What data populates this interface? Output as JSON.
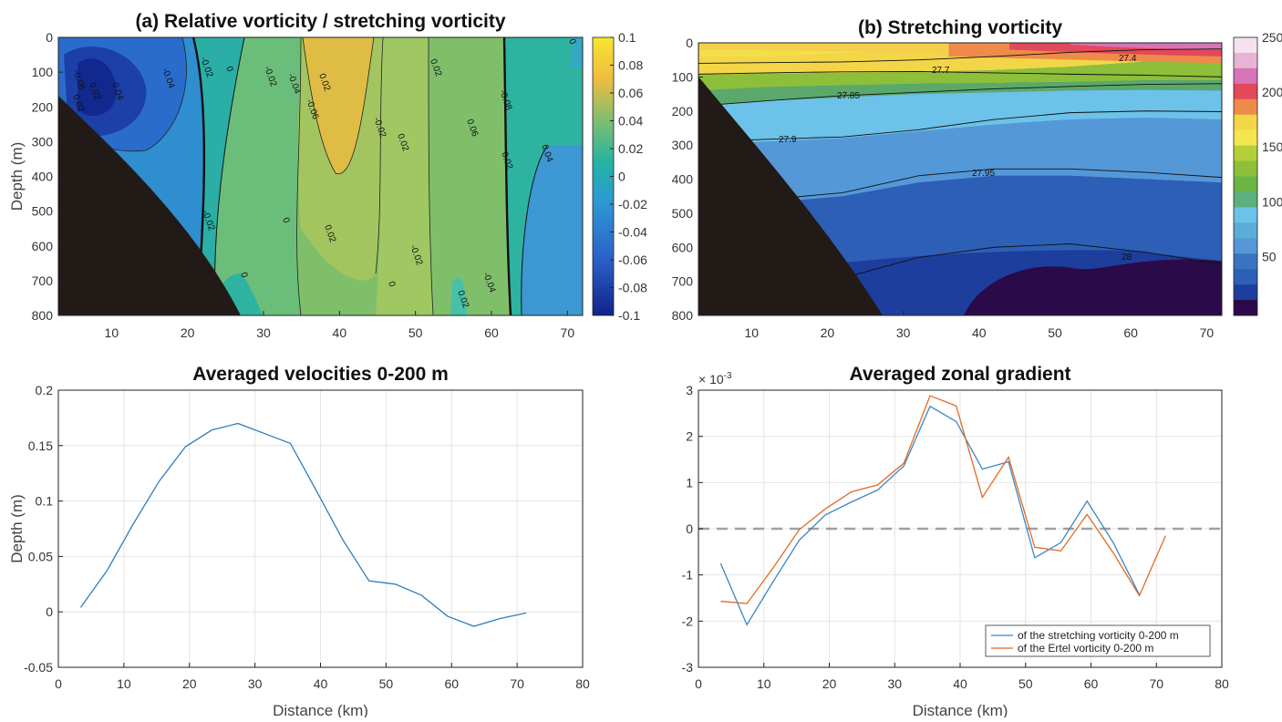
{
  "chart_data": [
    {
      "panel": "a",
      "type": "heatmap",
      "title": "(a) Relative vorticity / stretching vorticity",
      "xlabel": "",
      "ylabel": "Depth (m)",
      "xlim": [
        3,
        72
      ],
      "ylim": [
        800,
        0
      ],
      "x_ticks": [
        10,
        20,
        30,
        40,
        50,
        60,
        70
      ],
      "y_ticks": [
        0,
        100,
        200,
        300,
        400,
        500,
        600,
        700,
        800
      ],
      "colorbar": {
        "range": [
          -0.1,
          0.1
        ],
        "ticks": [
          "0.1",
          "0.08",
          "0.06",
          "0.04",
          "0.02",
          "0",
          "-0.02",
          "-0.04",
          "-0.06",
          "-0.08",
          "-0.1"
        ]
      },
      "contour_labels": [
        "-0.06",
        "-0.04",
        "-0.02",
        "0",
        "-0.02",
        "-0.04",
        "-0.06",
        "0.02",
        "-0.02",
        "0.02",
        "0.06",
        "0.04",
        "0.02",
        "-0.02",
        "0",
        "0.02",
        "-0.02",
        "0",
        "-0.04",
        "0.02",
        "0.02",
        "0.02",
        "0.04",
        "0.02",
        "-0.08",
        "0",
        "0"
      ],
      "colors": {
        "low": "#1b2a8c",
        "mid": "#2aa8b0",
        "high": "#f5e23a",
        "bathymetry": "#221a17"
      }
    },
    {
      "panel": "b",
      "type": "heatmap",
      "title": "(b) Stretching vorticity",
      "xlabel": "",
      "ylabel": "",
      "xlim": [
        3,
        72
      ],
      "ylim": [
        800,
        0
      ],
      "x_ticks": [
        10,
        20,
        30,
        40,
        50,
        60,
        70
      ],
      "y_ticks": [
        0,
        100,
        200,
        300,
        400,
        500,
        600,
        700,
        800
      ],
      "colorbar": {
        "range": [
          0,
          250
        ],
        "ticks": [
          "250",
          "200",
          "150",
          "100",
          "50"
        ]
      },
      "isopycnals": [
        {
          "label": "27.4",
          "depths": [
            60,
            58,
            56,
            50,
            40,
            28,
            20,
            18
          ]
        },
        {
          "label": "27.7",
          "depths": [
            92,
            88,
            85,
            84,
            88,
            92,
            95,
            100
          ]
        },
        {
          "label": "27.85",
          "depths": [
            185,
            170,
            155,
            145,
            135,
            128,
            122,
            120
          ]
        },
        {
          "label": "27.9",
          "depths": [
            290,
            283,
            276,
            255,
            225,
            205,
            200,
            202
          ]
        },
        {
          "label": "27.95",
          "depths": [
            470,
            460,
            440,
            390,
            370,
            370,
            380,
            395
          ]
        },
        {
          "label": "28",
          "depths": [
            760,
            740,
            690,
            630,
            600,
            590,
            615,
            650
          ]
        }
      ],
      "colors": {
        "bathymetry": "#221a17"
      }
    },
    {
      "panel": "c",
      "type": "line",
      "title": "Averaged velocities 0-200 m",
      "xlabel": "Distance (km)",
      "ylabel": "Depth (m)",
      "xlim": [
        0,
        80
      ],
      "ylim": [
        -0.05,
        0.2
      ],
      "x_ticks": [
        0,
        10,
        20,
        30,
        40,
        50,
        60,
        70,
        80
      ],
      "y_ticks": [
        -0.05,
        0,
        0.05,
        0.1,
        0.15,
        0.2
      ],
      "grid": true,
      "series": [
        {
          "color": "#2e7ebf",
          "x": [
            3.4,
            7.4,
            11.4,
            15.4,
            19.4,
            23.4,
            27.4,
            31.4,
            35.4,
            39.4,
            43.4,
            47.4,
            51.4,
            55.4,
            59.4,
            63.4,
            67.4,
            71.4
          ],
          "y": [
            0.004,
            0.037,
            0.079,
            0.118,
            0.149,
            0.164,
            0.17,
            0.161,
            0.152,
            0.109,
            0.065,
            0.028,
            0.025,
            0.015,
            -0.004,
            -0.013,
            -0.006,
            -0.001
          ]
        }
      ]
    },
    {
      "panel": "d",
      "type": "line",
      "title": "Averaged zonal gradient",
      "xlabel": "Distance (km)",
      "ylabel": "",
      "y_scale_label": "× 10",
      "y_scale_exponent": "-3",
      "xlim": [
        0,
        80
      ],
      "ylim": [
        -3,
        3
      ],
      "x_ticks": [
        0,
        10,
        20,
        30,
        40,
        50,
        60,
        70,
        80
      ],
      "y_ticks": [
        -3,
        -2,
        -1,
        0,
        1,
        2,
        3
      ],
      "grid": true,
      "legend_position": "bottom-right",
      "zero_line": true,
      "series": [
        {
          "name": "of the stretching vorticity 0-200 m",
          "color": "#3b86c6",
          "x": [
            3.4,
            7.4,
            11.4,
            15.4,
            19.4,
            23.4,
            27.4,
            31.4,
            35.4,
            39.4,
            43.4,
            47.4,
            51.4,
            55.4,
            59.4,
            63.4,
            67.4
          ],
          "y": [
            -0.75,
            -2.08,
            -1.15,
            -0.25,
            0.3,
            0.58,
            0.84,
            1.36,
            2.65,
            2.32,
            1.29,
            1.45,
            -0.63,
            -0.3,
            0.6,
            -0.3,
            -1.43
          ]
        },
        {
          "name": "of the Ertel vorticity 0-200 m",
          "color": "#e36a22",
          "x": [
            3.4,
            7.4,
            11.4,
            15.4,
            19.4,
            23.4,
            27.4,
            31.4,
            35.4,
            39.4,
            43.4,
            47.4,
            51.4,
            55.4,
            59.4,
            63.4,
            67.4,
            71.4
          ],
          "y": [
            -1.57,
            -1.62,
            -0.85,
            -0.02,
            0.43,
            0.8,
            0.95,
            1.42,
            2.88,
            2.66,
            0.68,
            1.55,
            -0.4,
            -0.48,
            0.31,
            -0.52,
            -1.45,
            -0.15
          ]
        }
      ]
    }
  ]
}
